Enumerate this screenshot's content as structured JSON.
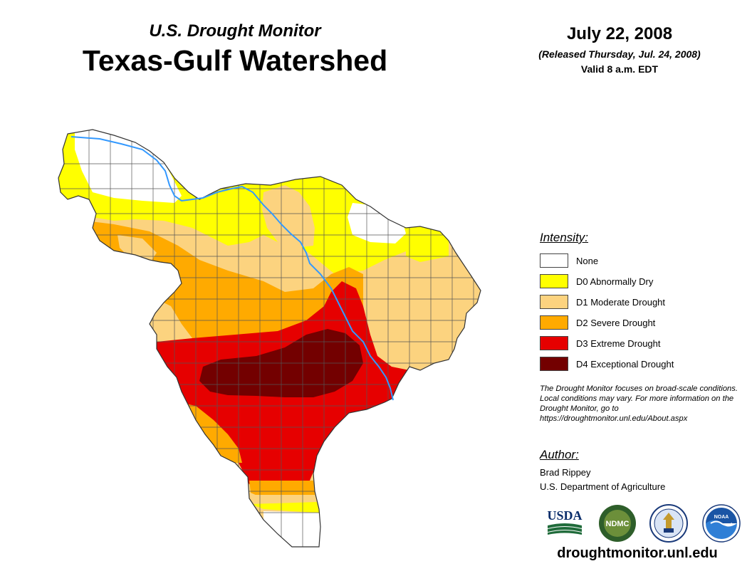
{
  "header": {
    "subtitle": "U.S. Drought Monitor",
    "title": "Texas-Gulf Watershed",
    "date": "July 22, 2008",
    "released": "(Released Thursday, Jul. 24, 2008)",
    "valid": "Valid 8 a.m. EDT"
  },
  "legend": {
    "heading": "Intensity:",
    "items": [
      {
        "label": "None",
        "color": "#ffffff"
      },
      {
        "label": "D0 Abnormally Dry",
        "color": "#ffff00"
      },
      {
        "label": "D1 Moderate Drought",
        "color": "#fcd37f"
      },
      {
        "label": "D2 Severe Drought",
        "color": "#ffaa00"
      },
      {
        "label": "D3 Extreme Drought",
        "color": "#e60000"
      },
      {
        "label": "D4 Exceptional Drought",
        "color": "#730000"
      }
    ]
  },
  "note": "The Drought Monitor focuses on broad-scale conditions. Local conditions may vary. For more information on the Drought Monitor, go to https://droughtmonitor.unl.edu/About.aspx",
  "author": {
    "heading": "Author:",
    "name": "Brad Rippey",
    "organization": "U.S. Department of Agriculture"
  },
  "logos": {
    "usda": "USDA",
    "ndmc": "NDMC",
    "noaa": "NOAA"
  },
  "footer": {
    "url": "droughtmonitor.unl.edu"
  },
  "colors": {
    "river": "#3399ff",
    "county_lines": "#555555"
  }
}
